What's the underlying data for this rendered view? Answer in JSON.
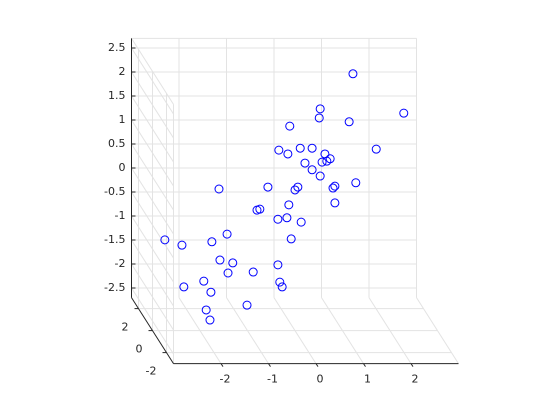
{
  "chart_data": {
    "type": "scatter3",
    "x": [
      1.22,
      2.29,
      0.53,
      0.51,
      1.14,
      -0.11,
      1.71,
      -0.34,
      -0.15,
      0.11,
      0.36,
      0.63,
      0.74,
      0.67,
      0.57,
      0.21,
      0.36,
      0.53,
      0.06,
      0.0,
      -0.57,
      -1.6,
      0.84,
      0.8,
      1.28,
      -0.13,
      -0.74,
      -0.8,
      -0.17,
      -0.36,
      0.13,
      0.84,
      -1.43,
      -2.74,
      -2.38,
      -1.75,
      -0.08,
      -1.58,
      -1.31,
      -1.41,
      -0.88,
      -0.36,
      -0.32,
      -0.27,
      -2.34,
      -1.92,
      -1.77,
      -1.01,
      -1.87,
      -1.79
    ],
    "y": [
      0,
      0,
      0,
      0,
      0,
      0,
      0,
      0,
      0,
      0,
      0,
      0,
      0,
      0,
      0,
      0,
      0,
      0,
      0,
      0,
      0,
      0,
      0,
      0,
      0,
      0,
      0,
      0,
      0,
      0,
      0,
      0,
      0,
      0,
      0,
      0,
      0,
      0,
      0,
      0,
      0,
      0,
      0,
      0,
      0,
      0,
      0,
      0,
      0,
      0
    ],
    "z": [
      2.65,
      1.83,
      1.92,
      1.73,
      1.65,
      1.56,
      1.08,
      1.06,
      0.98,
      1.1,
      1.1,
      0.98,
      0.88,
      0.83,
      0.81,
      0.79,
      0.65,
      0.52,
      0.29,
      0.23,
      0.29,
      0.25,
      0.31,
      0.27,
      0.38,
      -0.08,
      -0.17,
      -0.19,
      -0.35,
      -0.38,
      -0.44,
      -0.04,
      -0.69,
      -0.81,
      -0.92,
      -0.85,
      -0.79,
      -1.23,
      -1.29,
      -1.5,
      -1.48,
      -1.33,
      -1.69,
      -1.79,
      -1.79,
      -1.67,
      -1.9,
      -2.17,
      -2.27,
      -2.48
    ],
    "color": "#0000ff",
    "xlim": [
      -3,
      3
    ],
    "ylim": [
      -3,
      3
    ],
    "zlim": [
      -2.7,
      2.7
    ],
    "xticks": [
      -2,
      -1,
      0,
      1,
      2
    ],
    "yticks": [
      -2,
      0,
      2
    ],
    "zticks": [
      -2.5,
      -2,
      -1.5,
      -1,
      -0.5,
      0,
      0.5,
      1,
      1.5,
      2,
      2.5
    ],
    "grid": true
  }
}
